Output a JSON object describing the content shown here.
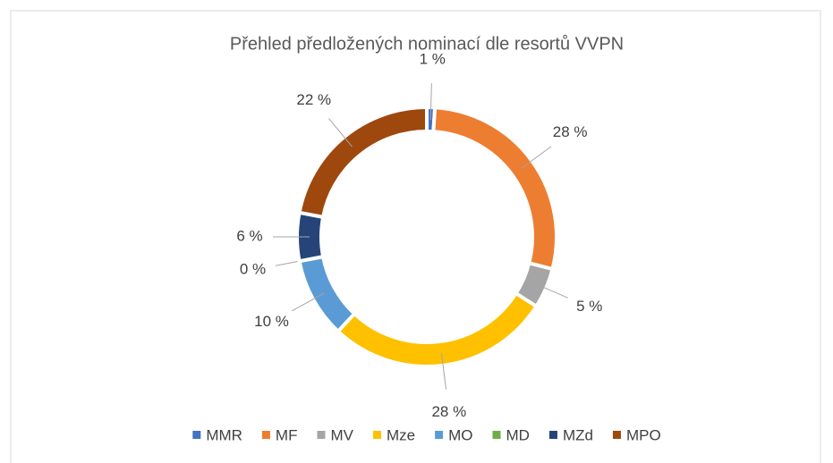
{
  "chart_data": {
    "type": "donut",
    "title": "Přehled předložených nominací dle resortů VVPN",
    "categories": [
      "MMR",
      "MF",
      "MV",
      "Mze",
      "MO",
      "MD",
      "MZd",
      "MPO"
    ],
    "values": [
      1,
      28,
      5,
      28,
      10,
      0,
      6,
      22
    ],
    "value_labels": [
      "1 %",
      "28 %",
      "5 %",
      "28 %",
      "10 %",
      "0 %",
      "6 %",
      "22 %"
    ],
    "colors": [
      "#4472c4",
      "#ed7d31",
      "#a5a5a5",
      "#ffc000",
      "#5b9bd5",
      "#70ad47",
      "#264478",
      "#9e480e"
    ],
    "legend": "bottom"
  }
}
